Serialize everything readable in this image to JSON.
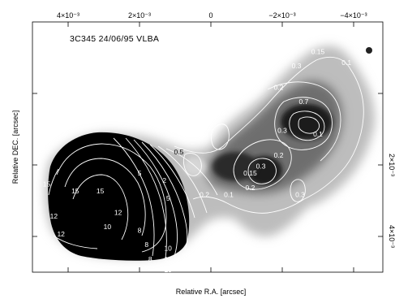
{
  "chart_data": {
    "type": "heatmap",
    "title": "3C345  24/06/95  VLBA",
    "xlabel": "Relative R.A. [arcsec]",
    "ylabel": "Relative DEC. [arcsec]",
    "x_ticks": [
      "4×10⁻³",
      "2×10⁻³",
      "0",
      "−2×10⁻³",
      "−4×10⁻³"
    ],
    "y_ticks_right": [
      "2×10⁻³",
      "4×10⁻³"
    ],
    "contour_labels": [
      {
        "text": "15",
        "x": 0.0046,
        "y": -0.0006,
        "tone": "white"
      },
      {
        "text": "15",
        "x": 0.0038,
        "y": -0.0008,
        "tone": "white"
      },
      {
        "text": "15",
        "x": 0.0031,
        "y": -0.0008,
        "tone": "white"
      },
      {
        "text": "12",
        "x": 0.0044,
        "y": -0.0015,
        "tone": "white"
      },
      {
        "text": "12",
        "x": 0.0042,
        "y": -0.002,
        "tone": "white"
      },
      {
        "text": "12",
        "x": 0.0026,
        "y": -0.0014,
        "tone": "white"
      },
      {
        "text": "10",
        "x": 0.0029,
        "y": -0.0018,
        "tone": "white"
      },
      {
        "text": "8",
        "x": 0.002,
        "y": -0.0019,
        "tone": "white"
      },
      {
        "text": "8",
        "x": 0.0018,
        "y": -0.0023,
        "tone": "white"
      },
      {
        "text": "8",
        "x": 0.0017,
        "y": -0.0027,
        "tone": "white"
      },
      {
        "text": "10",
        "x": 0.0012,
        "y": -0.0024,
        "tone": "white"
      },
      {
        "text": "12",
        "x": 0.0012,
        "y": -0.0027,
        "tone": "white"
      },
      {
        "text": "15",
        "x": 0.0012,
        "y": -0.003,
        "tone": "white"
      },
      {
        "text": "5",
        "x": 0.002,
        "y": -0.0003,
        "tone": "white"
      },
      {
        "text": "2",
        "x": 0.0013,
        "y": -0.0005,
        "tone": "white"
      },
      {
        "text": "5",
        "x": 0.0012,
        "y": -0.001,
        "tone": "white"
      },
      {
        "text": "0.5",
        "x": 0.0009,
        "y": 0.0003,
        "tone": "black"
      },
      {
        "text": "0.2",
        "x": 0.00018,
        "y": -0.0009,
        "tone": "white"
      },
      {
        "text": "0.1",
        "x": -0.0005,
        "y": -0.0009,
        "tone": "white"
      },
      {
        "text": "0.15",
        "x": -0.0011,
        "y": -0.0003,
        "tone": "white"
      },
      {
        "text": "0.3",
        "x": -0.00025,
        "y": 0.0014,
        "tone": "white"
      },
      {
        "text": "0.1",
        "x": -0.0013,
        "y": 0.0025,
        "tone": "white"
      },
      {
        "text": "0.2",
        "x": -0.0019,
        "y": 0.0021,
        "tone": "white"
      },
      {
        "text": "0.3",
        "x": -0.0024,
        "y": 0.0027,
        "tone": "white"
      },
      {
        "text": "0.7",
        "x": -0.0026,
        "y": 0.0017,
        "tone": "white"
      },
      {
        "text": "0.15",
        "x": -0.003,
        "y": 0.0031,
        "tone": "white"
      },
      {
        "text": "0.1",
        "x": -0.0038,
        "y": 0.0028,
        "tone": "white"
      },
      {
        "text": "0.3",
        "x": -0.002,
        "y": 0.0009,
        "tone": "white"
      },
      {
        "text": "0.1",
        "x": -0.003,
        "y": 0.0008,
        "tone": "white"
      },
      {
        "text": "0.3",
        "x": -0.0014,
        "y": -0.0001,
        "tone": "white"
      },
      {
        "text": "0.2",
        "x": -0.0019,
        "y": 0.0002,
        "tone": "white"
      },
      {
        "text": "0.2",
        "x": -0.0011,
        "y": -0.0007,
        "tone": "white"
      },
      {
        "text": "0.3",
        "x": -0.0025,
        "y": -0.0009,
        "tone": "white"
      }
    ],
    "grid": false,
    "colormap": "grayscale"
  }
}
